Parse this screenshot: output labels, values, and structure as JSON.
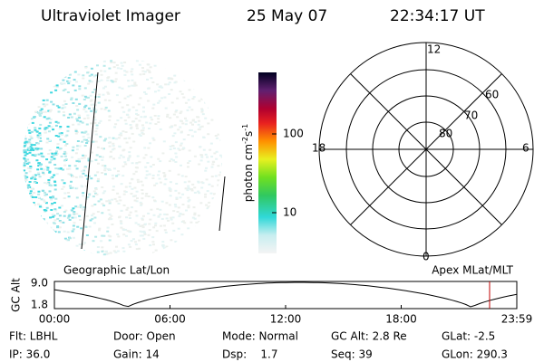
{
  "header": {
    "instrument": "Ultraviolet Imager",
    "date": "25 May 07",
    "time": "22:34:17 UT"
  },
  "colorbar": {
    "label": "photon cm",
    "exp1": "-2",
    "unit2": "s",
    "exp2": "-1",
    "ticks": [
      "100",
      "10"
    ]
  },
  "polar": {
    "lat_labels": [
      "60",
      "70",
      "80"
    ],
    "mlt_labels": {
      "top": "12",
      "bottom": "0",
      "left": "18",
      "right": "6"
    }
  },
  "altitude": {
    "ylabel": "GC Alt",
    "yticks": [
      "9.0",
      "1.8"
    ],
    "left_title": "Geographic Lat/Lon",
    "right_title": "Apex MLat/MLT",
    "xticks": [
      "00:00",
      "06:00",
      "12:00",
      "18:00",
      "23:59"
    ]
  },
  "info": {
    "rows": [
      [
        "Flt: LBHL",
        "Door: Open",
        "Mode: Normal",
        "GC Alt: 2.8 Re",
        "GLat: -2.5"
      ],
      [
        "IP: 36.0",
        "Gain: 14",
        "Dsp:    1.7",
        "Seq: 39",
        "GLon: 290.3"
      ]
    ]
  }
}
